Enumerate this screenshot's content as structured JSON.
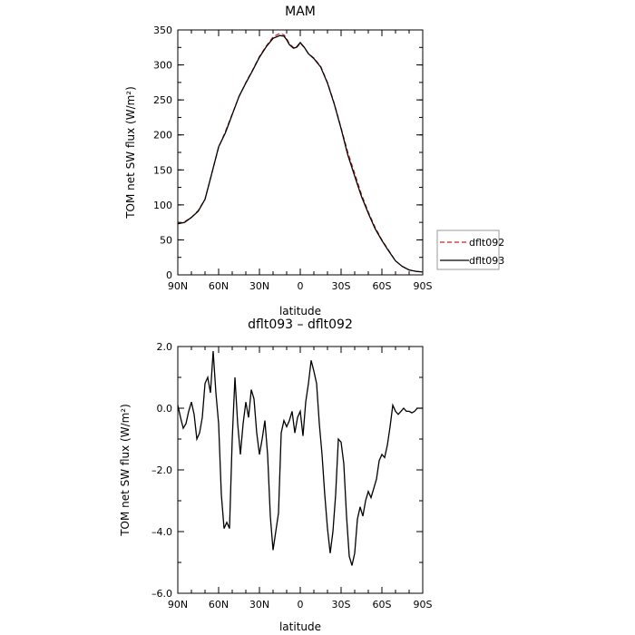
{
  "chart_data": [
    {
      "type": "line",
      "title": "MAM",
      "xlabel": "latitude",
      "ylabel": "TOM net SW flux (W/m²)",
      "x_ticks": [
        "90N",
        "60N",
        "30N",
        "0",
        "30S",
        "60S",
        "90S"
      ],
      "y_ticks": [
        "0",
        "50",
        "100",
        "150",
        "200",
        "250",
        "300",
        "350"
      ],
      "xlim": [
        90,
        -90
      ],
      "ylim": [
        0,
        350
      ],
      "grid": false,
      "legend": "right",
      "x": [
        90,
        85,
        80,
        75,
        70,
        65,
        60,
        55,
        50,
        45,
        40,
        35,
        30,
        25,
        20,
        15,
        12,
        10,
        8,
        5,
        3,
        0,
        -3,
        -6,
        -10,
        -15,
        -20,
        -25,
        -30,
        -35,
        -40,
        -45,
        -50,
        -55,
        -60,
        -65,
        -70,
        -75,
        -80,
        -85,
        -90
      ],
      "series": [
        {
          "name": "dflt092",
          "color": "#cc2222",
          "dash": "dashed",
          "values": [
            73,
            76,
            82,
            92,
            108,
            145,
            182,
            205,
            230,
            255,
            275,
            293,
            312,
            327,
            340,
            345,
            343,
            338,
            330,
            325,
            324,
            331,
            325,
            316,
            310,
            298,
            275,
            245,
            210,
            175,
            145,
            115,
            90,
            68,
            50,
            35,
            20,
            12,
            7,
            5,
            4
          ]
        },
        {
          "name": "dflt093",
          "color": "#000000",
          "dash": "solid",
          "values": [
            73,
            75,
            82,
            91,
            108,
            145,
            183,
            203,
            229,
            255,
            274,
            292,
            311,
            326,
            338,
            342,
            341,
            336,
            329,
            324,
            325,
            332,
            325,
            316,
            309,
            297,
            274,
            244,
            209,
            171,
            141,
            112,
            88,
            66,
            49,
            34,
            20,
            12,
            7,
            5,
            4
          ]
        }
      ]
    },
    {
      "type": "line",
      "title": "dflt093 – dflt092",
      "xlabel": "latitude",
      "ylabel": "TOM net SW flux (W/m²)",
      "x_ticks": [
        "90N",
        "60N",
        "30N",
        "0",
        "30S",
        "60S",
        "90S"
      ],
      "y_ticks": [
        "2.0",
        "0.0",
        "–2.0",
        "–4.0",
        "–6.0"
      ],
      "xlim": [
        90,
        -90
      ],
      "ylim": [
        -6,
        2
      ],
      "grid": false,
      "x": [
        90,
        88,
        86,
        84,
        82,
        80,
        78,
        76,
        74,
        72,
        70,
        68,
        66,
        64,
        62,
        60,
        58,
        56,
        54,
        52,
        50,
        48,
        46,
        44,
        42,
        40,
        38,
        36,
        34,
        32,
        30,
        28,
        26,
        24,
        22,
        20,
        18,
        16,
        14,
        12,
        10,
        8,
        6,
        4,
        2,
        0,
        -2,
        -4,
        -6,
        -8,
        -10,
        -12,
        -14,
        -16,
        -18,
        -20,
        -22,
        -24,
        -26,
        -28,
        -30,
        -32,
        -34,
        -36,
        -38,
        -40,
        -42,
        -44,
        -46,
        -48,
        -50,
        -52,
        -54,
        -56,
        -58,
        -60,
        -62,
        -64,
        -66,
        -68,
        -70,
        -72,
        -74,
        -76,
        -78,
        -80,
        -82,
        -84,
        -86,
        -88,
        -90
      ],
      "series": [
        {
          "name": "dflt093 - dflt092",
          "color": "#000000",
          "values": [
            0.1,
            -0.3,
            -0.65,
            -0.5,
            -0.1,
            0.2,
            -0.2,
            -1.0,
            -0.8,
            -0.3,
            0.8,
            1.0,
            0.5,
            1.85,
            0.5,
            -0.5,
            -2.8,
            -3.9,
            -3.7,
            -3.9,
            -1.0,
            1.0,
            -0.5,
            -1.5,
            -0.5,
            0.2,
            -0.3,
            0.6,
            0.3,
            -0.8,
            -1.5,
            -1.0,
            -0.4,
            -1.5,
            -3.5,
            -4.6,
            -4.0,
            -3.4,
            -0.8,
            -0.4,
            -0.6,
            -0.4,
            -0.1,
            -0.8,
            -0.3,
            -0.1,
            -0.9,
            0.2,
            0.8,
            1.55,
            1.2,
            0.8,
            -0.5,
            -1.5,
            -2.8,
            -3.9,
            -4.7,
            -4.0,
            -2.8,
            -1.0,
            -1.1,
            -1.8,
            -3.5,
            -4.8,
            -5.1,
            -4.7,
            -3.6,
            -3.2,
            -3.5,
            -3.0,
            -2.7,
            -2.9,
            -2.6,
            -2.3,
            -1.7,
            -1.5,
            -1.6,
            -1.2,
            -0.6,
            0.1,
            -0.1,
            -0.2,
            -0.1,
            0.0,
            -0.1,
            -0.1,
            -0.15,
            -0.1,
            0.0,
            0.0,
            0.0
          ]
        }
      ]
    }
  ]
}
